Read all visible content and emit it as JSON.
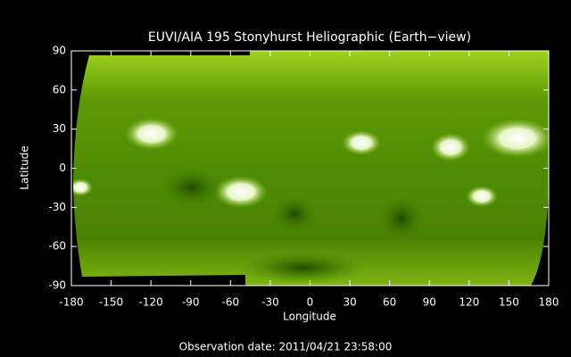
{
  "chart_data": {
    "type": "image",
    "title": "EUVI/AIA 195 Stonyhurst Heliographic (Earth−view)",
    "xlabel": "Longitude",
    "ylabel": "Latitude",
    "xlim": [
      -180,
      180
    ],
    "ylim": [
      -90,
      90
    ],
    "xticks": [
      -180,
      -150,
      -120,
      -90,
      -60,
      -30,
      0,
      30,
      60,
      90,
      120,
      150,
      180
    ],
    "yticks": [
      -90,
      -60,
      -30,
      0,
      30,
      60,
      90
    ],
    "grid": false,
    "footnote": "Observation date: 2011/04/21 23:58:00"
  }
}
